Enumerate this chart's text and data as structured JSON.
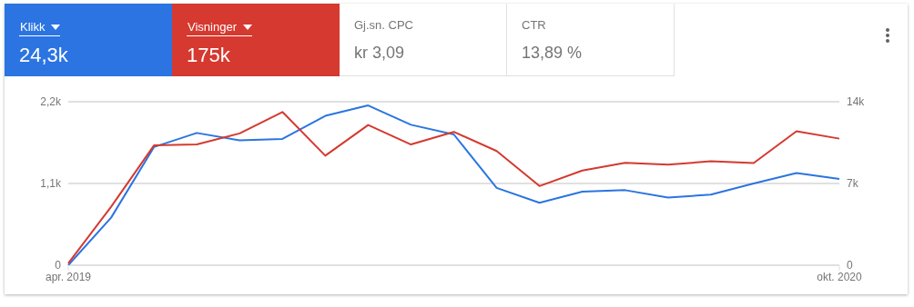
{
  "chart_data": {
    "type": "line",
    "categories": [
      "apr. 2019",
      null,
      null,
      null,
      null,
      null,
      null,
      null,
      null,
      null,
      null,
      null,
      null,
      null,
      null,
      null,
      null,
      null,
      "okt. 2020"
    ],
    "series": [
      {
        "name": "Klikk",
        "color": "#2b74e2",
        "values": [
          0,
          640,
          1590,
          1780,
          1680,
          1700,
          2010,
          2150,
          1890,
          1760,
          1040,
          840,
          990,
          1010,
          910,
          950,
          1100,
          1240,
          1160
        ]
      },
      {
        "name": "Visninger",
        "color": "#d5392f",
        "axis": "y2",
        "values": [
          160,
          5010,
          10260,
          10340,
          11290,
          13120,
          9380,
          12010,
          10340,
          11420,
          9780,
          6780,
          8110,
          8770,
          8610,
          8900,
          8750,
          11470,
          10840
        ]
      }
    ],
    "annotations": [
      "24,3k",
      "175k",
      "Gj.sn. CPC",
      "kr 3,09",
      "CTR",
      "13,89 %"
    ],
    "ylim": [
      0,
      2200
    ],
    "yticks": [
      0,
      {
        "value": 1100,
        "label": "1,1k"
      },
      {
        "value": 2200,
        "label": "2,2k"
      }
    ],
    "y2lim": [
      0,
      14000
    ],
    "y2ticks": [
      0,
      {
        "value": 7000,
        "label": "7k"
      },
      {
        "value": 14000,
        "label": "14k"
      }
    ],
    "grid": "y",
    "legend": "top left",
    "marker": "none",
    "line_style": "solid"
  }
}
